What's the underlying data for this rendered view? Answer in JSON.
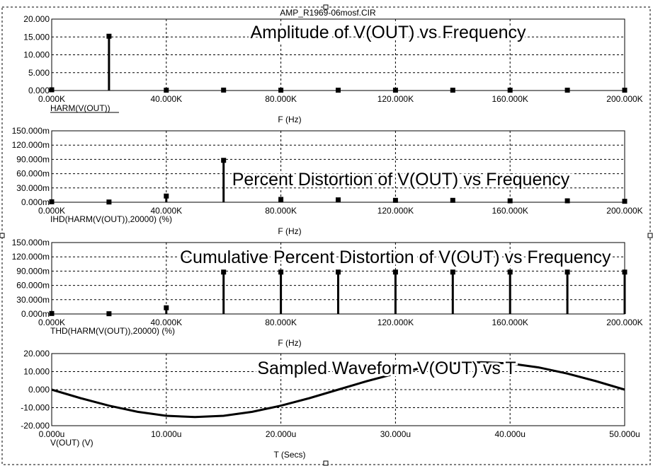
{
  "window": {
    "title": "AMP_R1969-06mosf.CIR"
  },
  "colors": {
    "trace": "#000000",
    "grid": "#000000",
    "background": "#ffffff"
  },
  "chart_data": [
    {
      "type": "bar",
      "overlay_title": "Amplitude of V(OUT) vs Frequency",
      "trace_label": "HARM(V(OUT))",
      "xlabel": "F (Hz)",
      "xlim": [
        0,
        200000
      ],
      "ylim": [
        0,
        20
      ],
      "x_ticks": [
        "0.000K",
        "40.000K",
        "80.000K",
        "120.000K",
        "160.000K",
        "200.000K"
      ],
      "y_ticks": [
        "0.000",
        "5.000",
        "10.000",
        "15.000",
        "20.000"
      ],
      "x": [
        0,
        20000,
        40000,
        60000,
        80000,
        100000,
        120000,
        140000,
        160000,
        180000,
        200000
      ],
      "values": [
        0.2,
        15.2,
        0.1,
        0.12,
        0.1,
        0.1,
        0.1,
        0.1,
        0.1,
        0.1,
        0.1
      ]
    },
    {
      "type": "bar",
      "overlay_title": "Percent Distortion of V(OUT) vs Frequency",
      "trace_label": "IHD(HARM(V(OUT)),20000) (%)",
      "xlabel": "F (Hz)",
      "xlim": [
        0,
        200000
      ],
      "ylim": [
        0,
        150
      ],
      "x_ticks": [
        "0.000K",
        "40.000K",
        "80.000K",
        "120.000K",
        "160.000K",
        "200.000K"
      ],
      "y_ticks": [
        "0.000m",
        "30.000m",
        "60.000m",
        "90.000m",
        "120.000m",
        "150.000m"
      ],
      "x": [
        0,
        20000,
        40000,
        60000,
        80000,
        100000,
        120000,
        140000,
        160000,
        180000,
        200000
      ],
      "values": [
        1,
        0.5,
        13,
        88,
        6,
        5,
        4,
        4,
        3,
        3,
        2
      ]
    },
    {
      "type": "bar",
      "overlay_title": "Cumulative Percent Distortion of V(OUT) vs Frequency",
      "trace_label": "THD(HARM(V(OUT)),20000) (%)",
      "xlabel": "F (Hz)",
      "xlim": [
        0,
        200000
      ],
      "ylim": [
        0,
        150
      ],
      "x_ticks": [
        "0.000K",
        "40.000K",
        "80.000K",
        "120.000K",
        "160.000K",
        "200.000K"
      ],
      "y_ticks": [
        "0.000m",
        "30.000m",
        "60.000m",
        "90.000m",
        "120.000m",
        "150.000m"
      ],
      "x": [
        0,
        20000,
        40000,
        60000,
        80000,
        100000,
        120000,
        140000,
        160000,
        180000,
        200000
      ],
      "values": [
        1,
        0.5,
        13,
        88,
        88,
        88,
        88,
        88,
        88,
        88,
        88
      ]
    },
    {
      "type": "line",
      "overlay_title": "Sampled Waveform  V(OUT) vs T",
      "trace_label": "V(OUT) (V)",
      "xlabel": "T (Secs)",
      "xlim": [
        0,
        50
      ],
      "ylim": [
        -20,
        20
      ],
      "x_ticks": [
        "0.000u",
        "10.000u",
        "20.000u",
        "30.000u",
        "40.000u",
        "50.000u"
      ],
      "y_ticks": [
        "-20.000",
        "-10.000",
        "0.000",
        "10.000",
        "20.000"
      ],
      "x": [
        0,
        2.5,
        5,
        7.5,
        10,
        12.5,
        15,
        17.5,
        20,
        22.5,
        25,
        27.5,
        30,
        32.5,
        35,
        37.5,
        40,
        42.5,
        45,
        47.5,
        50
      ],
      "values": [
        0,
        -4.7,
        -8.9,
        -12.3,
        -14.5,
        -15.2,
        -14.5,
        -12.3,
        -8.9,
        -4.7,
        0,
        4.7,
        8.9,
        12.3,
        14.5,
        15.2,
        14.5,
        12.3,
        8.9,
        4.7,
        0
      ]
    }
  ]
}
